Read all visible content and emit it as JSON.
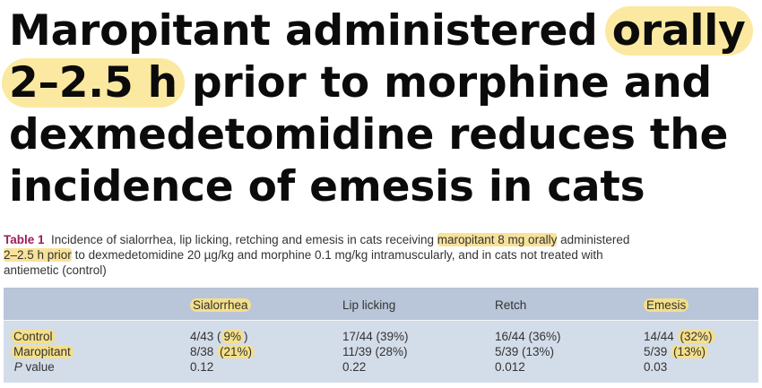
{
  "title": {
    "line1_pre": "Maropitant administered ",
    "line1_mark": "orally",
    "line2_mark": "2–2.5 h",
    "line2_post": " prior to morphine and",
    "line3": "dexmedetomidine reduces the",
    "line4": "incidence of emesis in cats"
  },
  "caption": {
    "label": "Table 1",
    "text1": "Incidence of sialorrhea, lip licking, retching and emesis in cats receiving ",
    "mark1": "maropitant 8 mg orally",
    "text2": " administered",
    "mark2": "2–2.5 h prior",
    "text3": " to dexmedetomidine 20 µg/kg and morphine 0.1 mg/kg intramuscularly, and in cats not treated with",
    "text4": "antiemetic (control)"
  },
  "table": {
    "headers": [
      "",
      "Sialorrhea",
      "Lip licking",
      "Retch",
      "Emesis"
    ],
    "rows": [
      {
        "label": "Control",
        "sialorrhea_pre": "4/43 (",
        "sialorrhea_mark": "9%",
        "sialorrhea_post": ")",
        "lip": "17/44 (39%)",
        "retch": "16/44 (36%)",
        "emesis_pre": "14/44 ",
        "emesis_mark": "(32%)"
      },
      {
        "label": "Maropitant",
        "sialorrhea_pre": "8/38 ",
        "sialorrhea_mark": "(21%)",
        "sialorrhea_post": "",
        "lip": "11/39 (28%)",
        "retch": "5/39 (13%)",
        "emesis_pre": "5/39 ",
        "emesis_mark": "(13%)"
      }
    ],
    "pvalue": {
      "label_italic": "P",
      "label_rest": " value",
      "sialorrhea": "0.12",
      "lip": "0.22",
      "retch": "0.012",
      "emesis": "0.03"
    }
  },
  "colors": {
    "highlight": "#fbe9a1",
    "table_header": "#b9c5d9",
    "table_body": "#d3dce9",
    "table_label": "#9b1d5b"
  }
}
